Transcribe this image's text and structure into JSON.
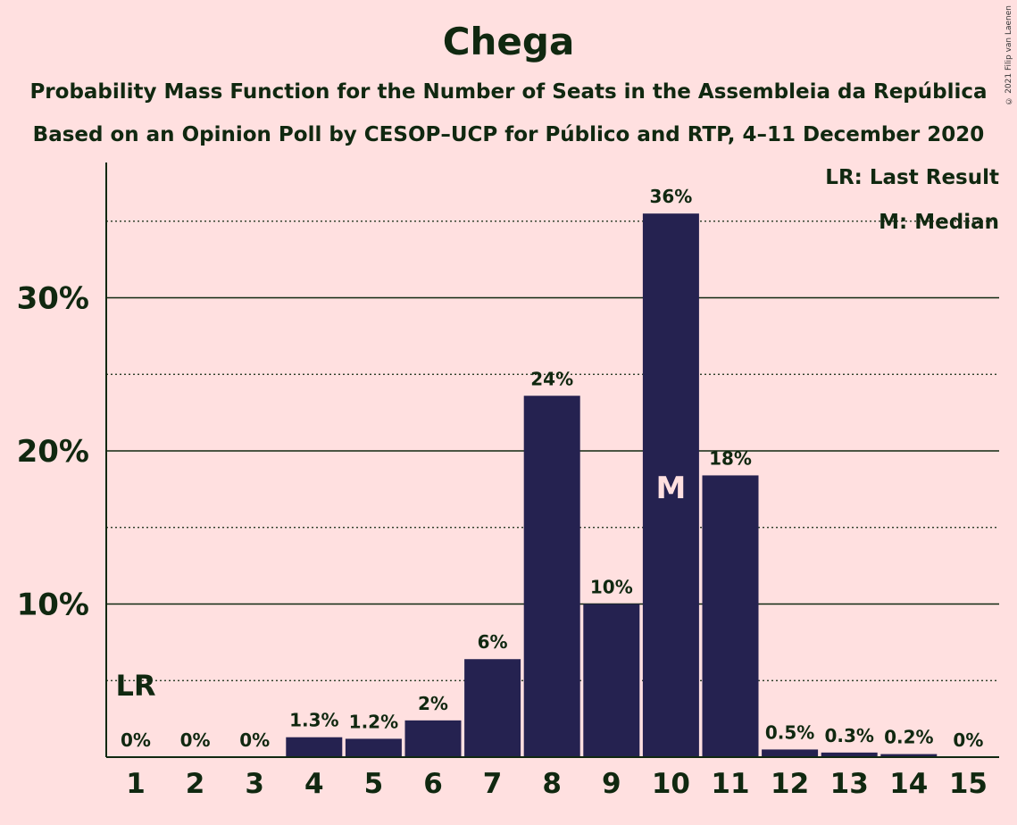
{
  "chart_data": {
    "type": "bar",
    "title": "Chega",
    "subtitle": "Probability Mass Function for the Number of Seats in the Assembleia da República",
    "subtitle2": "Based on an Opinion Poll by CESOP–UCP for Público and RTP, 4–11 December 2020",
    "copyright": "© 2021 Filip van Laenen",
    "categories": [
      "1",
      "2",
      "3",
      "4",
      "5",
      "6",
      "7",
      "8",
      "9",
      "10",
      "11",
      "12",
      "13",
      "14",
      "15"
    ],
    "values": [
      0,
      0,
      0,
      1.3,
      1.2,
      2.4,
      6.4,
      23.6,
      10.0,
      35.5,
      18.4,
      0.5,
      0.3,
      0.2,
      0
    ],
    "data_labels": [
      "0%",
      "0%",
      "0%",
      "1.3%",
      "1.2%",
      "2%",
      "6%",
      "24%",
      "10%",
      "36%",
      "18%",
      "0.5%",
      "0.3%",
      "0.2%",
      "0%"
    ],
    "ylim": [
      0,
      38
    ],
    "y_ticks": [
      {
        "value": 10,
        "label": "10%"
      },
      {
        "value": 20,
        "label": "20%"
      },
      {
        "value": 30,
        "label": "30%"
      }
    ],
    "y_minor_gridlines": [
      5,
      15,
      25,
      35
    ],
    "last_result": {
      "category": "1",
      "label": "LR"
    },
    "median": {
      "category": "10",
      "label": "M"
    },
    "legend": {
      "placement": "top-right",
      "items": [
        "LR: Last Result",
        "M: Median"
      ]
    },
    "colors": {
      "bar": "#252250",
      "background": "#ffe0e0",
      "text": "#102810",
      "median_text": "#ffe0e0"
    }
  }
}
